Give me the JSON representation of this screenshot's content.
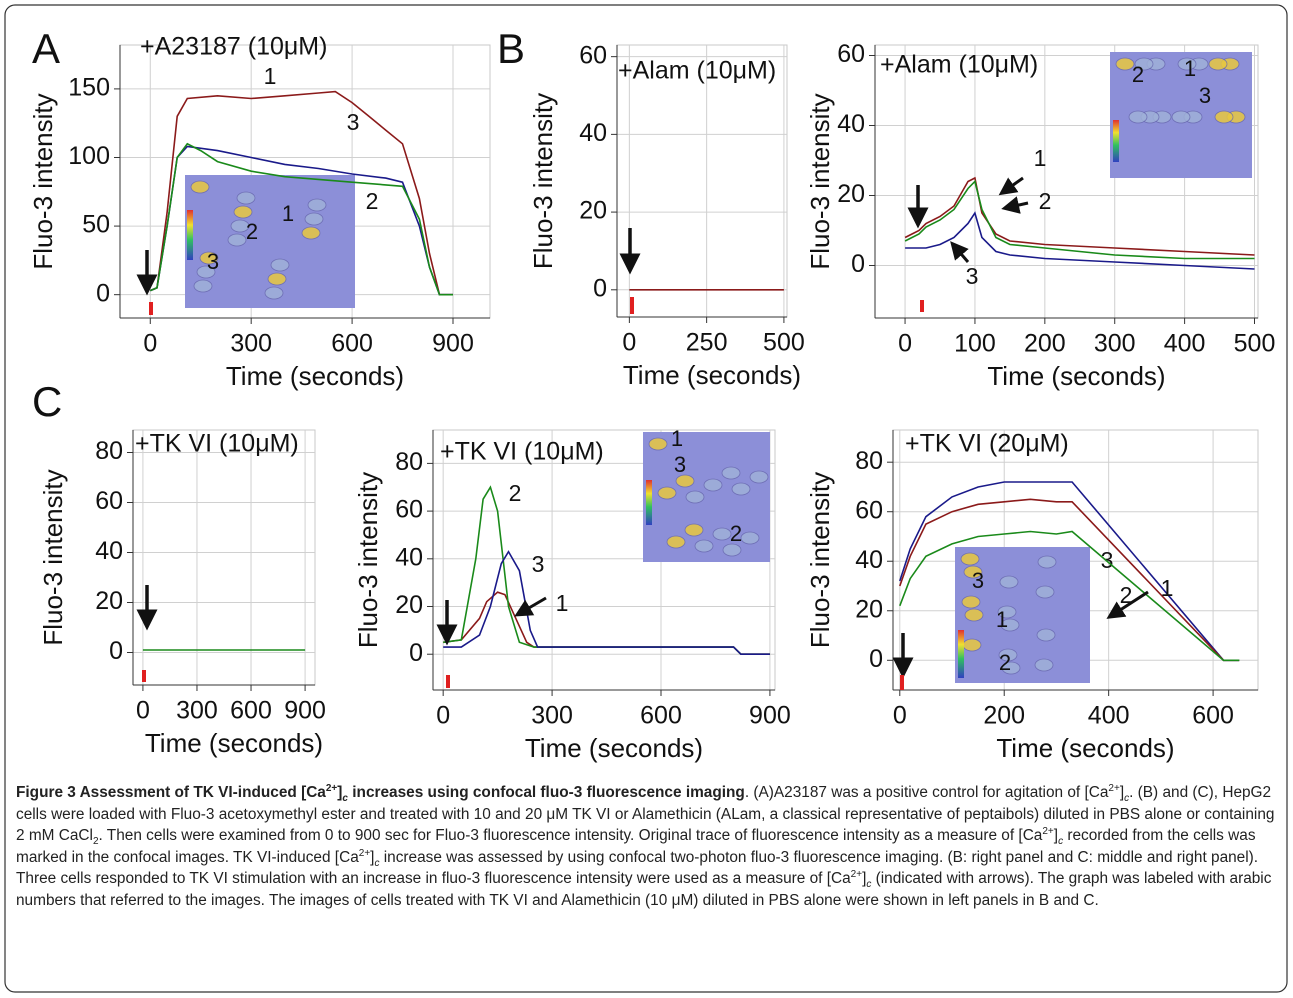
{
  "panel_letters": [
    "A",
    "B",
    "C"
  ],
  "chart_data": [
    {
      "type": "line",
      "title": "+A23187 (10μM)",
      "y_label": "Fluo-3 intensity",
      "x_label": "Time (seconds)",
      "xlim": [
        -90,
        1010
      ],
      "ylim": [
        -17,
        182
      ],
      "xticks": [
        0,
        300,
        600,
        900
      ],
      "yticks": [
        0,
        50,
        100,
        150
      ],
      "grid": true,
      "series": [
        {
          "name": "1",
          "color": "#8b1a1a",
          "x": [
            0,
            20,
            50,
            80,
            110,
            200,
            300,
            400,
            500,
            550,
            600,
            650,
            700,
            750,
            800,
            830,
            860,
            900
          ],
          "values": [
            3,
            5,
            60,
            130,
            143,
            145,
            143,
            145,
            147,
            148,
            140,
            130,
            120,
            110,
            70,
            30,
            0,
            0
          ]
        },
        {
          "name": "3",
          "color": "#1a1a8a",
          "x": [
            0,
            20,
            50,
            80,
            110,
            200,
            300,
            400,
            500,
            600,
            700,
            750,
            800,
            830,
            860,
            900
          ],
          "values": [
            3,
            5,
            50,
            100,
            108,
            105,
            100,
            95,
            92,
            88,
            85,
            82,
            50,
            20,
            0,
            0
          ]
        },
        {
          "name": "2",
          "color": "#1a8a1a",
          "x": [
            0,
            20,
            50,
            80,
            110,
            150,
            200,
            300,
            400,
            500,
            600,
            700,
            750,
            800,
            830,
            860,
            900
          ],
          "values": [
            3,
            5,
            50,
            100,
            110,
            105,
            97,
            90,
            86,
            84,
            82,
            80,
            79,
            55,
            20,
            0,
            0
          ]
        }
      ]
    },
    {
      "type": "line",
      "title": "+Alam  (10μM)",
      "y_label": "Fluo-3 intensity",
      "x_label": "Time (seconds)",
      "xlim": [
        -40,
        510
      ],
      "ylim": [
        -7,
        63
      ],
      "xticks": [
        0,
        250,
        500
      ],
      "yticks": [
        0,
        20,
        40,
        60
      ],
      "grid": true,
      "series": [
        {
          "color": "#8b1a1a",
          "x": [
            0,
            100,
            200,
            300,
            400,
            500
          ],
          "values": [
            0,
            0,
            0,
            0,
            0,
            0
          ]
        }
      ]
    },
    {
      "type": "line",
      "title": "+Alam  (10μM)",
      "y_label": "Fluo-3 intensity",
      "x_label": "Time (seconds)",
      "xlim": [
        -43,
        505
      ],
      "ylim": [
        -15,
        63
      ],
      "xticks": [
        0,
        100,
        200,
        300,
        400,
        500
      ],
      "yticks": [
        0,
        20,
        40,
        60
      ],
      "grid": true,
      "series": [
        {
          "name": "1",
          "color": "#8b1a1a",
          "x": [
            0,
            10,
            20,
            30,
            50,
            70,
            90,
            100,
            110,
            130,
            150,
            200,
            300,
            400,
            500
          ],
          "values": [
            8,
            9,
            10,
            12,
            14,
            17,
            24,
            25,
            15,
            9,
            7,
            6,
            5,
            4,
            3
          ]
        },
        {
          "name": "2",
          "color": "#1a8a1a",
          "x": [
            0,
            10,
            20,
            30,
            50,
            70,
            90,
            100,
            110,
            130,
            150,
            200,
            300,
            400,
            500
          ],
          "values": [
            7,
            8,
            9,
            11,
            13,
            16,
            22,
            24,
            16,
            8,
            6,
            5,
            3,
            2,
            2
          ]
        },
        {
          "name": "3",
          "color": "#1a1a8a",
          "x": [
            0,
            10,
            20,
            30,
            50,
            70,
            90,
            100,
            110,
            130,
            150,
            200,
            300,
            400,
            500
          ],
          "values": [
            5,
            5,
            5,
            5,
            6,
            8,
            12,
            15,
            8,
            4,
            3,
            2,
            1,
            0,
            -1
          ]
        }
      ]
    },
    {
      "type": "line",
      "title": "+TK VI (10μM)",
      "y_label": "Fluo-3 intensity",
      "x_label": "Time (seconds)",
      "xlim": [
        -55,
        955
      ],
      "ylim": [
        -13,
        89
      ],
      "xticks": [
        0,
        300,
        600,
        900
      ],
      "yticks": [
        0,
        20,
        40,
        60,
        80
      ],
      "grid": true,
      "series": [
        {
          "color": "#1a8a1a",
          "x": [
            0,
            100,
            200,
            300,
            400,
            500,
            600,
            700,
            800,
            900
          ],
          "values": [
            1,
            1,
            1,
            1,
            1,
            1,
            1,
            1,
            1,
            1
          ]
        }
      ]
    },
    {
      "type": "line",
      "title": "+TK VI (10μM)",
      "y_label": "Fluo-3 intensity",
      "x_label": "Time (seconds)",
      "xlim": [
        -28,
        914
      ],
      "ylim": [
        -15,
        94
      ],
      "xticks": [
        0,
        300,
        600,
        900
      ],
      "yticks": [
        0,
        20,
        40,
        60,
        80
      ],
      "grid": true,
      "series": [
        {
          "name": "1",
          "color": "#8b1a1a",
          "x": [
            0,
            50,
            100,
            120,
            150,
            170,
            200,
            230,
            250,
            300,
            600,
            800,
            820,
            900
          ],
          "values": [
            5,
            6,
            15,
            22,
            26,
            25,
            15,
            5,
            3,
            3,
            3,
            3,
            0,
            0
          ]
        },
        {
          "name": "2",
          "color": "#1a8a1a",
          "x": [
            0,
            50,
            90,
            110,
            130,
            150,
            180,
            210,
            250,
            300,
            600,
            800,
            820,
            900
          ],
          "values": [
            5,
            6,
            40,
            65,
            70,
            60,
            20,
            5,
            3,
            3,
            3,
            3,
            0,
            0
          ]
        },
        {
          "name": "3",
          "color": "#1a1a8a",
          "x": [
            0,
            50,
            100,
            130,
            160,
            180,
            210,
            240,
            260,
            300,
            600,
            800,
            820,
            900
          ],
          "values": [
            3,
            3,
            8,
            20,
            38,
            43,
            35,
            10,
            3,
            3,
            3,
            3,
            0,
            0
          ]
        }
      ]
    },
    {
      "type": "line",
      "title": "+TK VI (20μM)",
      "y_label": "Fluo-3 intensity",
      "x_label": "Time (seconds)",
      "xlim": [
        -13,
        686
      ],
      "ylim": [
        -12,
        93
      ],
      "xticks": [
        0,
        200,
        400,
        600
      ],
      "yticks": [
        0,
        20,
        40,
        60,
        80
      ],
      "grid": true,
      "series": [
        {
          "name": "3",
          "color": "#1a1a8a",
          "x": [
            0,
            20,
            50,
            100,
            150,
            200,
            250,
            300,
            330,
            620,
            650
          ],
          "values": [
            32,
            45,
            58,
            66,
            70,
            72,
            72,
            72,
            72,
            0,
            0
          ]
        },
        {
          "name": "1",
          "color": "#8b1a1a",
          "x": [
            0,
            20,
            50,
            100,
            150,
            200,
            250,
            300,
            330,
            620,
            650
          ],
          "values": [
            30,
            42,
            55,
            60,
            63,
            64,
            65,
            64,
            64,
            0,
            0
          ]
        },
        {
          "name": "2",
          "color": "#1a8a1a",
          "x": [
            0,
            20,
            50,
            100,
            150,
            200,
            250,
            300,
            330,
            620,
            650
          ],
          "values": [
            22,
            33,
            42,
            47,
            50,
            51,
            52,
            51,
            52,
            0,
            0
          ]
        }
      ]
    }
  ],
  "caption": {
    "runs": [
      {
        "text": "Figure 3 Assessment of TK VI-induced [Ca",
        "style": "b"
      },
      {
        "text": "2+",
        "style": "b-sup"
      },
      {
        "text": "]",
        "style": "b"
      },
      {
        "text": "c",
        "style": "b-sub-i"
      },
      {
        "text": " increases using confocal fluo-3 fluorescence imaging",
        "style": "b"
      },
      {
        "text": ". (A)A23187 was a positive control for agitation of [Ca",
        "style": "normal"
      },
      {
        "text": "2+",
        "style": "sup"
      },
      {
        "text": "]",
        "style": "normal"
      },
      {
        "text": "c",
        "style": "sub-i"
      },
      {
        "text": ". (B) and (C), HepG2 cells were loaded with Fluo-3 acetoxymethyl ester and treated with 10 and 20 μM TK VI or Alamethicin (ALam, a classical representative of peptaibols) diluted in PBS alone or containing 2 mM CaCl",
        "style": "normal"
      },
      {
        "text": "2",
        "style": "sub"
      },
      {
        "text": ". Then cells were examined from 0 to 900 sec for Fluo-3 fluorescence intensity. Original trace of fluorescence intensity as a measure of [Ca",
        "style": "normal"
      },
      {
        "text": "2+",
        "style": "sup"
      },
      {
        "text": "]",
        "style": "normal"
      },
      {
        "text": "c",
        "style": "sub-i"
      },
      {
        "text": " recorded from the cells was marked in the confocal images. TK VI-induced [Ca",
        "style": "normal"
      },
      {
        "text": "2+",
        "style": "sup"
      },
      {
        "text": "]",
        "style": "normal"
      },
      {
        "text": "c",
        "style": "sub-i"
      },
      {
        "text": " increase was assessed by using confocal two-photon fluo-3 fluorescence imaging. (B: right panel and C: middle and right panel). Three cells responded to TK VI stimulation with an increase in fluo-3 fluorescence intensity were used as a measure of [Ca",
        "style": "normal"
      },
      {
        "text": "2+",
        "style": "sup"
      },
      {
        "text": "]",
        "style": "normal"
      },
      {
        "text": "c",
        "style": "sub-i"
      },
      {
        "text": " (indicated with arrows). The graph was labeled with arabic numbers that referred to the images. The images of cells treated with TK VI and Alamethicin (10 μM) diluted in PBS alone were shown in left panels in B and C.",
        "style": "normal"
      }
    ]
  }
}
